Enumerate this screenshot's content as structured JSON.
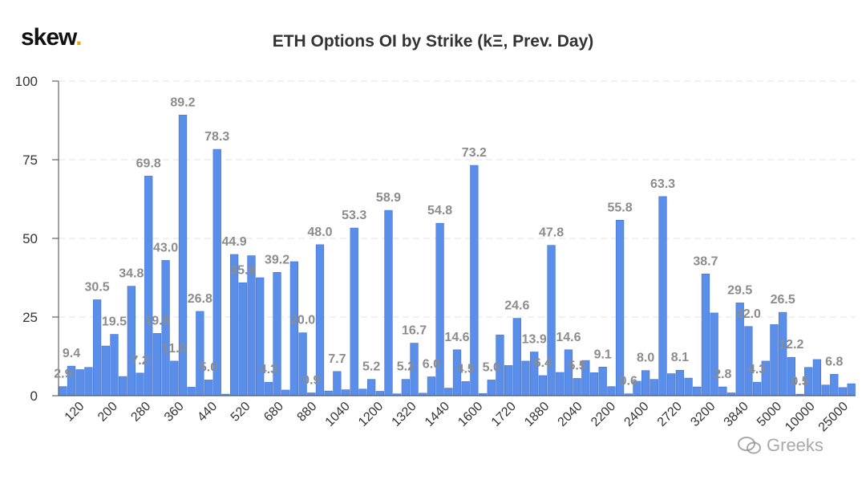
{
  "brand": {
    "name": "skew",
    "dot": "."
  },
  "title": "ETH Options OI by Strike (kΞ, Prev. Day)",
  "watermark": "Greeks",
  "colors": {
    "bar": "#5a8ee8",
    "bar_stroke": "#3f74d4",
    "label": "#8c8c8c",
    "grid": "#e3e3e3"
  },
  "chart_data": {
    "type": "bar",
    "title": "ETH Options OI by Strike (kΞ, Prev. Day)",
    "xlabel": "",
    "ylabel": "",
    "ylim": [
      0,
      100
    ],
    "yticks": [
      0,
      25,
      50,
      75,
      100
    ],
    "grid": "horizontal dashed",
    "x_tick_labels": [
      "120",
      "200",
      "280",
      "360",
      "440",
      "520",
      "680",
      "880",
      "1040",
      "1200",
      "1320",
      "1440",
      "1600",
      "1720",
      "1880",
      "2040",
      "2200",
      "2400",
      "2720",
      "3200",
      "3840",
      "5000",
      "10000",
      "25000"
    ],
    "values": [
      2.9,
      9.4,
      8.3,
      9.0,
      30.5,
      15.8,
      19.5,
      6.1,
      34.8,
      7.2,
      69.8,
      19.8,
      43.0,
      11.0,
      89.2,
      2.7,
      26.8,
      5.0,
      78.3,
      0.5,
      44.9,
      35.9,
      44.5,
      37.5,
      4.3,
      39.2,
      1.8,
      42.6,
      20.0,
      0.9,
      48.0,
      1.5,
      7.7,
      1.9,
      53.3,
      2.1,
      5.2,
      1.4,
      58.9,
      0.6,
      5.2,
      16.7,
      0.8,
      6.0,
      54.8,
      2.4,
      14.6,
      4.5,
      73.2,
      0.7,
      5.0,
      19.3,
      9.6,
      24.6,
      11.0,
      13.9,
      6.4,
      47.8,
      7.4,
      14.6,
      5.5,
      11.2,
      7.3,
      9.1,
      2.9,
      55.8,
      0.6,
      4.6,
      8.0,
      5.2,
      63.3,
      7.0,
      8.1,
      5.6,
      2.8,
      38.7,
      26.3,
      2.8,
      0.9,
      29.5,
      22.0,
      4.3,
      11.0,
      22.6,
      26.5,
      12.2,
      0.5,
      9.0,
      11.5,
      3.4,
      6.8,
      2.6,
      3.8
    ],
    "data_labels": [
      {
        "bar": 0,
        "text": "2.9"
      },
      {
        "bar": 1,
        "text": "9.4"
      },
      {
        "bar": 4,
        "text": "30.5"
      },
      {
        "bar": 6,
        "text": "19.5"
      },
      {
        "bar": 8,
        "text": "34.8"
      },
      {
        "bar": 9,
        "text": "7.2"
      },
      {
        "bar": 10,
        "text": "69.8"
      },
      {
        "bar": 11,
        "text": "19.8"
      },
      {
        "bar": 12,
        "text": "43.0"
      },
      {
        "bar": 13,
        "text": "11.0"
      },
      {
        "bar": 14,
        "text": "89.2"
      },
      {
        "bar": 16,
        "text": "26.8"
      },
      {
        "bar": 17,
        "text": "5.0"
      },
      {
        "bar": 18,
        "text": "78.3"
      },
      {
        "bar": 20,
        "text": "44.9"
      },
      {
        "bar": 21,
        "text": "35.9"
      },
      {
        "bar": 24,
        "text": "4.3"
      },
      {
        "bar": 25,
        "text": "39.2"
      },
      {
        "bar": 28,
        "text": "20.0"
      },
      {
        "bar": 29,
        "text": "0.9"
      },
      {
        "bar": 30,
        "text": "48.0"
      },
      {
        "bar": 32,
        "text": "7.7"
      },
      {
        "bar": 34,
        "text": "53.3"
      },
      {
        "bar": 36,
        "text": "5.2"
      },
      {
        "bar": 38,
        "text": "58.9"
      },
      {
        "bar": 40,
        "text": "5.2"
      },
      {
        "bar": 41,
        "text": "16.7"
      },
      {
        "bar": 43,
        "text": "6.0"
      },
      {
        "bar": 44,
        "text": "54.8"
      },
      {
        "bar": 46,
        "text": "14.6"
      },
      {
        "bar": 47,
        "text": "4.5"
      },
      {
        "bar": 48,
        "text": "73.2"
      },
      {
        "bar": 50,
        "text": "5.0"
      },
      {
        "bar": 53,
        "text": "24.6"
      },
      {
        "bar": 55,
        "text": "13.9"
      },
      {
        "bar": 56,
        "text": "6.4"
      },
      {
        "bar": 57,
        "text": "47.8"
      },
      {
        "bar": 59,
        "text": "14.6"
      },
      {
        "bar": 60,
        "text": "5.5"
      },
      {
        "bar": 63,
        "text": "9.1"
      },
      {
        "bar": 65,
        "text": "55.8"
      },
      {
        "bar": 66,
        "text": "0.6"
      },
      {
        "bar": 68,
        "text": "8.0"
      },
      {
        "bar": 70,
        "text": "63.3"
      },
      {
        "bar": 72,
        "text": "8.1"
      },
      {
        "bar": 75,
        "text": "38.7"
      },
      {
        "bar": 77,
        "text": "2.8"
      },
      {
        "bar": 79,
        "text": "29.5"
      },
      {
        "bar": 80,
        "text": "22.0"
      },
      {
        "bar": 81,
        "text": "4.3"
      },
      {
        "bar": 84,
        "text": "26.5"
      },
      {
        "bar": 85,
        "text": "12.2"
      },
      {
        "bar": 86,
        "text": "0.5"
      },
      {
        "bar": 90,
        "text": "6.8"
      }
    ]
  }
}
